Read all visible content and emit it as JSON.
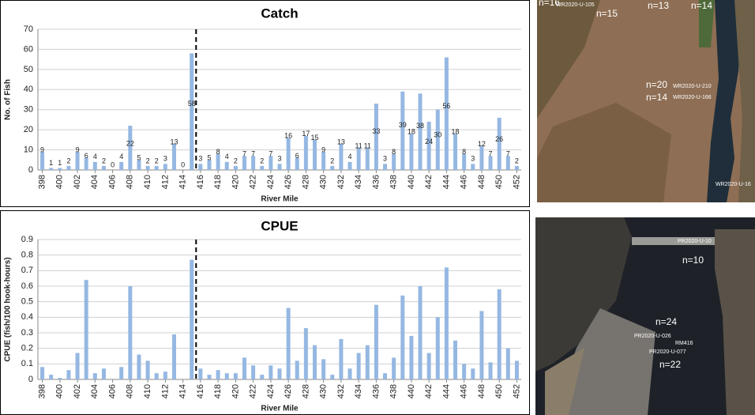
{
  "chart_data": [
    {
      "type": "bar",
      "title": "Catch",
      "x_label": "River Mile",
      "y_label": "No. of Fish",
      "x": [
        398,
        399,
        400,
        401,
        402,
        403,
        404,
        405,
        406,
        407,
        408,
        409,
        410,
        411,
        412,
        413,
        414,
        415,
        416,
        417,
        418,
        419,
        420,
        421,
        422,
        423,
        424,
        425,
        426,
        427,
        428,
        429,
        430,
        431,
        432,
        433,
        434,
        435,
        436,
        437,
        438,
        439,
        440,
        441,
        442,
        443,
        444,
        445,
        446,
        447,
        448,
        449,
        450,
        451,
        452
      ],
      "values": [
        9,
        1,
        1,
        2,
        9,
        6,
        4,
        2,
        0,
        4,
        22,
        5,
        2,
        2,
        3,
        13,
        0,
        58,
        3,
        5,
        8,
        4,
        2,
        7,
        7,
        2,
        7,
        3,
        16,
        6,
        17,
        15,
        9,
        2,
        13,
        4,
        11,
        11,
        33,
        3,
        8,
        39,
        18,
        38,
        24,
        30,
        56,
        18,
        8,
        3,
        12,
        7,
        26,
        7,
        2
      ],
      "color": "#95b8e2",
      "xlim": [
        397.5,
        452.5
      ],
      "xticks": [
        398,
        400,
        402,
        404,
        406,
        408,
        410,
        412,
        414,
        416,
        418,
        420,
        422,
        424,
        426,
        428,
        430,
        432,
        434,
        436,
        438,
        440,
        442,
        444,
        446,
        448,
        450,
        452
      ],
      "ylim": [
        0,
        70
      ],
      "yticks": [
        0,
        10,
        20,
        30,
        40,
        50,
        60,
        70
      ],
      "grid": true,
      "vline": 415.5
    },
    {
      "type": "bar",
      "title": "CPUE",
      "x_label": "River Mile",
      "y_label": "CPUE (fish/100 hook-hours)",
      "x": [
        398,
        399,
        400,
        401,
        402,
        403,
        404,
        405,
        406,
        407,
        408,
        409,
        410,
        411,
        412,
        413,
        414,
        415,
        416,
        417,
        418,
        419,
        420,
        421,
        422,
        423,
        424,
        425,
        426,
        427,
        428,
        429,
        430,
        431,
        432,
        433,
        434,
        435,
        436,
        437,
        438,
        439,
        440,
        441,
        442,
        443,
        444,
        445,
        446,
        447,
        448,
        449,
        450,
        451,
        452
      ],
      "values": [
        0.08,
        0.03,
        0.01,
        0.06,
        0.17,
        0.64,
        0.04,
        0.07,
        0,
        0.08,
        0.6,
        0.16,
        0.12,
        0.04,
        0.05,
        0.29,
        0,
        0.77,
        0.07,
        0.03,
        0.06,
        0.04,
        0.04,
        0.14,
        0.09,
        0.03,
        0.09,
        0.07,
        0.46,
        0.12,
        0.33,
        0.22,
        0.13,
        0.03,
        0.26,
        0.07,
        0.17,
        0.22,
        0.48,
        0.04,
        0.14,
        0.54,
        0.28,
        0.6,
        0.17,
        0.4,
        0.72,
        0.25,
        0.1,
        0.07,
        0.44,
        0.11,
        0.58,
        0.2,
        0.12
      ],
      "color": "#95b8e2",
      "xlim": [
        397.5,
        452.5
      ],
      "xticks": [
        398,
        400,
        402,
        404,
        406,
        408,
        410,
        412,
        414,
        416,
        418,
        420,
        422,
        424,
        426,
        428,
        430,
        432,
        434,
        436,
        438,
        440,
        442,
        444,
        446,
        448,
        450,
        452
      ],
      "ylim": [
        0,
        0.9
      ],
      "yticks": [
        0,
        0.1,
        0.2,
        0.3,
        0.4,
        0.5,
        0.6,
        0.7,
        0.8,
        0.9
      ],
      "grid": true,
      "vline": 415.5
    }
  ],
  "images": [
    {
      "labels": [
        "n=16",
        "WR2020-U-105",
        "n=15",
        "n=13",
        "n=14",
        "n=20",
        "WR2020-U-210",
        "n=14",
        "WR2020-U-166",
        "WR2020-U-16"
      ]
    },
    {
      "labels": [
        "PR2020-U-10",
        "n=10",
        "n=24",
        "PR2020-U-026",
        "RM416",
        "PR2020-U-077",
        "n=22"
      ]
    }
  ]
}
